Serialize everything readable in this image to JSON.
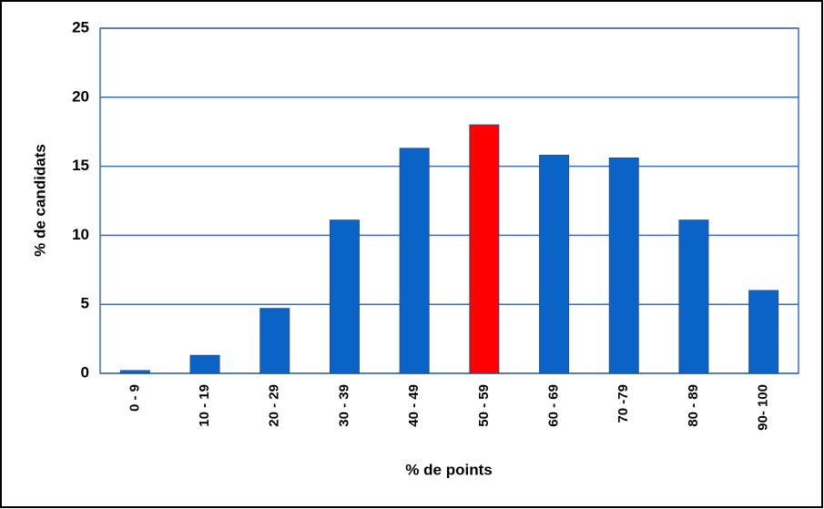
{
  "chart_data": {
    "type": "bar",
    "xlabel": "% de points",
    "ylabel": "% de candidats",
    "categories": [
      "0 - 9",
      "10 - 19",
      "20 - 29",
      "30 - 39",
      "40 - 49",
      "50 - 59",
      "60 - 69",
      "70 -79",
      "80 - 89",
      "90- 100"
    ],
    "values": [
      0.2,
      1.3,
      4.7,
      11.1,
      16.3,
      18,
      15.8,
      15.6,
      11.1,
      6.0
    ],
    "colors": [
      "#0a64c8",
      "#0a64c8",
      "#0a64c8",
      "#0a64c8",
      "#0a64c8",
      "#ff0000",
      "#0a64c8",
      "#0a64c8",
      "#0a64c8",
      "#0a64c8"
    ],
    "ylim": [
      0,
      25
    ],
    "yticks": [
      0,
      5,
      10,
      15,
      20,
      25
    ],
    "grid": true
  }
}
